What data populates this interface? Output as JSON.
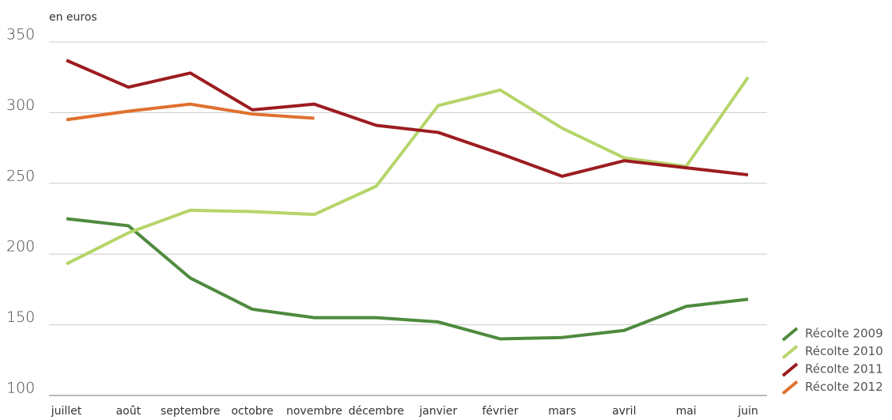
{
  "chart_data": {
    "type": "line",
    "y_label": "en euros",
    "categories": [
      "juillet",
      "août",
      "septembre",
      "octobre",
      "novembre",
      "décembre",
      "janvier",
      "février",
      "mars",
      "avril",
      "mai",
      "juin"
    ],
    "series": [
      {
        "name": "Récolte 2009",
        "color": "#4e8a3e",
        "values": [
          225,
          220,
          183,
          161,
          155,
          155,
          152,
          140,
          141,
          146,
          163,
          168
        ]
      },
      {
        "name": "Récolte 2010",
        "color": "#b6d56a",
        "values": [
          193,
          215,
          231,
          230,
          228,
          248,
          305,
          316,
          289,
          268,
          262,
          325
        ]
      },
      {
        "name": "Récolte 2011",
        "color": "#9c1c1f",
        "values": [
          337,
          318,
          328,
          302,
          306,
          291,
          286,
          271,
          255,
          266,
          261,
          256
        ]
      },
      {
        "name": "Récolte 2012",
        "color": "#e0702f",
        "values": [
          295,
          301,
          306,
          299,
          296,
          null,
          null,
          null,
          null,
          null,
          null,
          null
        ]
      }
    ],
    "ylim": [
      100,
      350
    ],
    "yticks": [
      100,
      150,
      200,
      250,
      300,
      350
    ],
    "grid": true,
    "legend_position": "lower right"
  }
}
